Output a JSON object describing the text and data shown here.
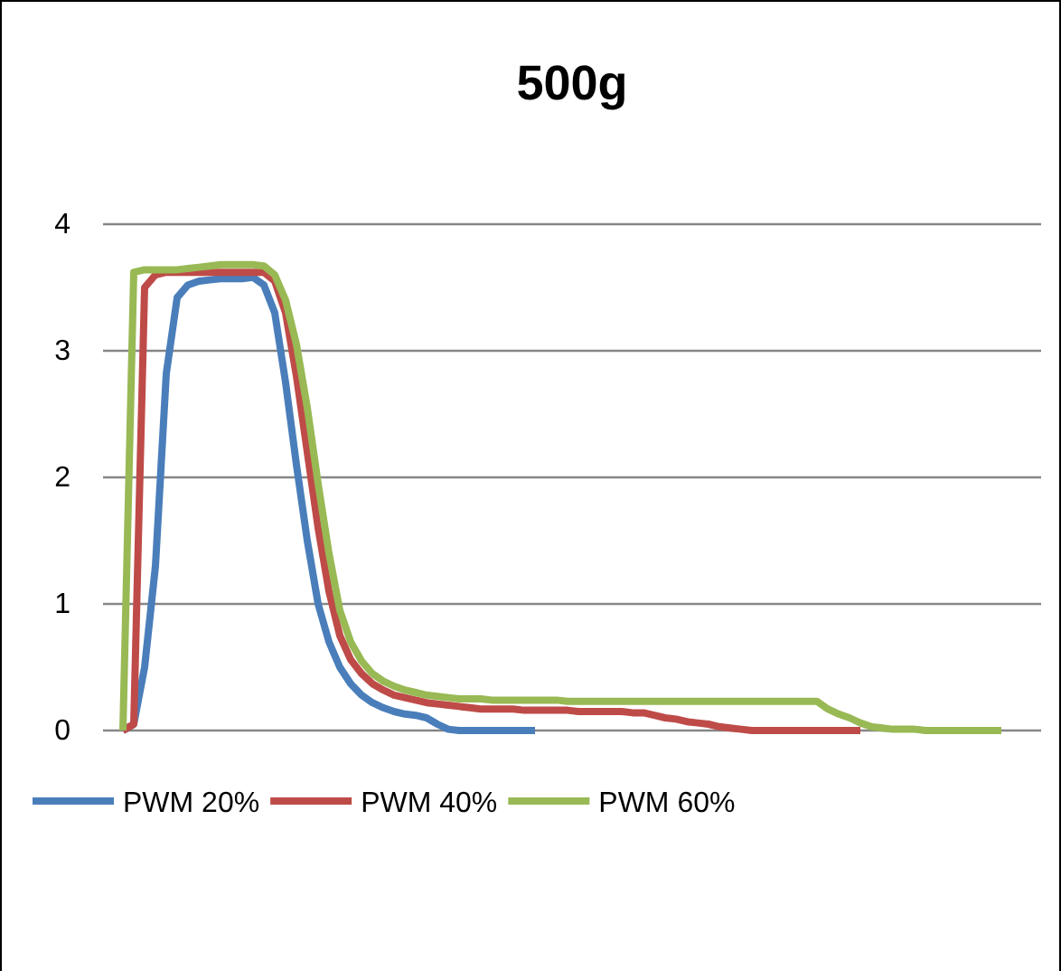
{
  "chart_data": {
    "type": "line",
    "title": "500g",
    "categories": [
      null,
      null,
      null,
      null,
      null,
      null,
      null,
      null,
      null,
      null,
      null,
      null,
      null,
      null,
      null,
      null,
      null,
      null,
      null,
      null,
      null,
      null,
      null,
      null,
      null,
      null,
      null,
      null,
      null,
      null,
      null,
      null,
      null,
      null,
      null,
      null,
      null,
      null,
      null,
      null,
      null,
      null,
      null,
      null,
      null,
      null,
      null,
      null,
      null,
      null,
      null,
      null,
      null,
      null,
      null,
      null,
      null,
      null,
      null,
      null,
      null,
      null,
      null,
      null,
      null,
      null,
      null,
      null,
      null,
      null,
      null,
      null,
      null,
      null,
      null,
      null,
      null,
      null,
      null,
      null,
      null,
      null
    ],
    "series": [
      {
        "name": "PWM 20%",
        "color": "#4a7ebb",
        "values": [
          0,
          0.05,
          0.5,
          1.3,
          2.82,
          3.42,
          3.52,
          3.55,
          3.56,
          3.57,
          3.57,
          3.57,
          3.58,
          3.52,
          3.3,
          2.75,
          2.1,
          1.5,
          1.0,
          0.7,
          0.5,
          0.37,
          0.28,
          0.22,
          0.18,
          0.15,
          0.13,
          0.12,
          0.1,
          0.05,
          0.01,
          0,
          0,
          0,
          0,
          0,
          0,
          0,
          0,
          null,
          null,
          null,
          null,
          null,
          null,
          null,
          null,
          null,
          null,
          null,
          null,
          null,
          null,
          null,
          null,
          null,
          null,
          null,
          null,
          null,
          null,
          null,
          null,
          null,
          null,
          null,
          null,
          null,
          null,
          null,
          null,
          null,
          null,
          null,
          null,
          null,
          null,
          null,
          null,
          null,
          null,
          null
        ]
      },
      {
        "name": "PWM 40%",
        "color": "#be4b48",
        "values": [
          0,
          0.05,
          3.5,
          3.6,
          3.62,
          3.62,
          3.62,
          3.62,
          3.62,
          3.62,
          3.62,
          3.62,
          3.62,
          3.62,
          3.55,
          3.3,
          2.8,
          2.2,
          1.6,
          1.1,
          0.75,
          0.56,
          0.45,
          0.37,
          0.32,
          0.28,
          0.26,
          0.24,
          0.22,
          0.21,
          0.2,
          0.19,
          0.18,
          0.17,
          0.17,
          0.17,
          0.17,
          0.16,
          0.16,
          0.16,
          0.16,
          0.16,
          0.15,
          0.15,
          0.15,
          0.15,
          0.15,
          0.14,
          0.14,
          0.12,
          0.1,
          0.09,
          0.07,
          0.06,
          0.05,
          0.03,
          0.02,
          0.01,
          0,
          0,
          0,
          0,
          0,
          0,
          0,
          0,
          0,
          0,
          0,
          null,
          null,
          null,
          null,
          null,
          null,
          null,
          null,
          null,
          null,
          null,
          null,
          null
        ]
      },
      {
        "name": "PWM 60%",
        "color": "#98b954",
        "values": [
          0,
          3.62,
          3.64,
          3.64,
          3.64,
          3.64,
          3.65,
          3.66,
          3.67,
          3.68,
          3.68,
          3.68,
          3.68,
          3.67,
          3.6,
          3.4,
          3.05,
          2.55,
          1.95,
          1.4,
          0.95,
          0.7,
          0.55,
          0.45,
          0.39,
          0.35,
          0.32,
          0.3,
          0.28,
          0.27,
          0.26,
          0.25,
          0.25,
          0.25,
          0.24,
          0.24,
          0.24,
          0.24,
          0.24,
          0.24,
          0.24,
          0.23,
          0.23,
          0.23,
          0.23,
          0.23,
          0.23,
          0.23,
          0.23,
          0.23,
          0.23,
          0.23,
          0.23,
          0.23,
          0.23,
          0.23,
          0.23,
          0.23,
          0.23,
          0.23,
          0.23,
          0.23,
          0.23,
          0.23,
          0.23,
          0.17,
          0.13,
          0.1,
          0.06,
          0.03,
          0.02,
          0.01,
          0.01,
          0.01,
          0,
          0,
          0,
          0,
          0,
          0,
          0,
          0
        ]
      }
    ],
    "ylim": [
      0,
      4
    ],
    "yticks": [
      0,
      1,
      2,
      3,
      4
    ],
    "grid": "y",
    "legend": "bottom",
    "line_style": "solid",
    "marker": "none"
  }
}
